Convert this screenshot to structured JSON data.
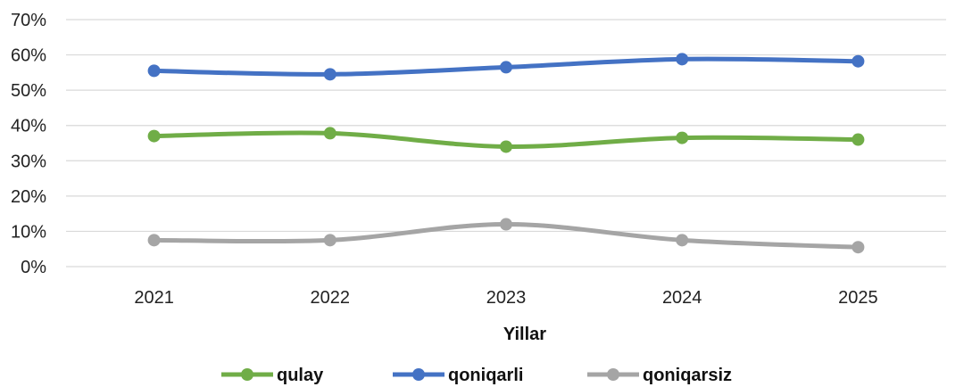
{
  "chart_data": {
    "type": "line",
    "categories": [
      "2021",
      "2022",
      "2023",
      "2024",
      "2025"
    ],
    "series": [
      {
        "name": "qulay",
        "values": [
          37,
          37.8,
          34,
          36.5,
          36
        ],
        "color": "#70ad47"
      },
      {
        "name": "qoniqarli",
        "values": [
          55.5,
          54.5,
          56.5,
          58.8,
          58.2
        ],
        "color": "#4472c4"
      },
      {
        "name": "qoniqarsiz",
        "values": [
          7.5,
          7.5,
          12,
          7.5,
          5.5
        ],
        "color": "#a5a5a5"
      }
    ],
    "xlabel": "Yillar",
    "ylabel": "",
    "ylim": [
      0,
      70
    ],
    "yticks": [
      "0%",
      "10%",
      "20%",
      "30%",
      "40%",
      "50%",
      "60%",
      "70%"
    ],
    "grid": true,
    "smooth": true,
    "legend_position": "bottom"
  }
}
